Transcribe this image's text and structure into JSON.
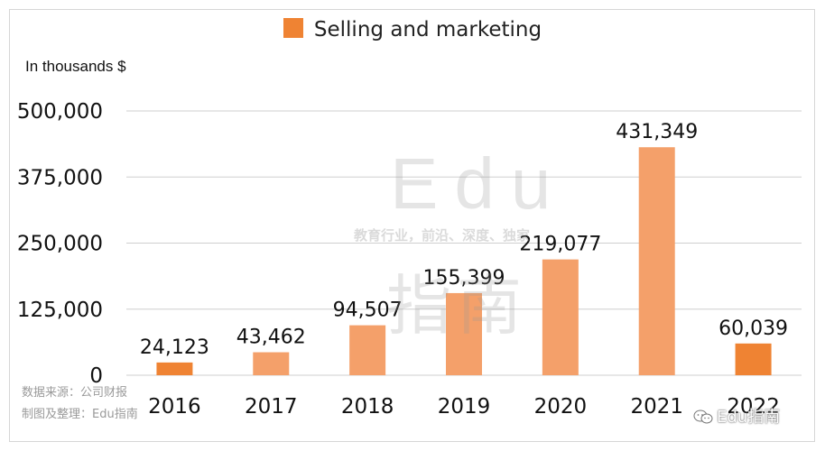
{
  "chart_data": {
    "type": "bar",
    "legend": [
      "Selling and marketing"
    ],
    "unit_label": "In thousands $",
    "categories": [
      "2016",
      "2017",
      "2018",
      "2019",
      "2020",
      "2021",
      "2022"
    ],
    "series": [
      {
        "name": "Selling and marketing",
        "values": [
          24123,
          43462,
          94507,
          155399,
          219077,
          431349,
          60039
        ],
        "data_labels": [
          "24,123",
          "43,462",
          "94,507",
          "155,399",
          "219,077",
          "431,349",
          "60,039"
        ]
      }
    ],
    "y_ticks": [
      0,
      125000,
      250000,
      375000,
      500000
    ],
    "y_tick_labels": [
      "0",
      "125,000",
      "250,000",
      "375,000",
      "500,000"
    ],
    "ylim": [
      0,
      500000
    ],
    "grid": true,
    "legend_position": "top-center",
    "colors": {
      "bar": "#F4A06A",
      "bar_highlight": "#EF8333",
      "grid": "#cfcfcf"
    }
  },
  "watermark": {
    "brand": "Edu",
    "slogan": "教育行业，前沿、深度、独家",
    "name_cn": "指南"
  },
  "source": {
    "line1": "数据来源：公司财报",
    "line2": "制图及整理：Edu指南"
  },
  "footer_badge": "Edu指南"
}
